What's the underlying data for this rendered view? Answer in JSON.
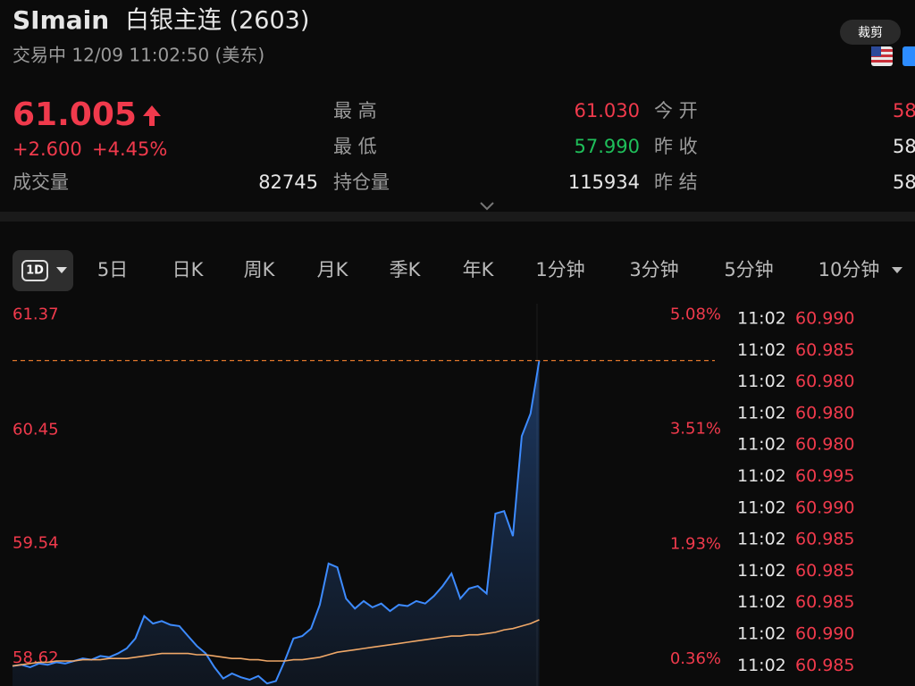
{
  "header": {
    "symbol": "SImain",
    "name": "白银主连 (2603)",
    "status": "交易中 12/09 11:02:50 (美东)",
    "badge": "裁剪"
  },
  "quote": {
    "price": 61.005,
    "change": "+2.600",
    "change_pct": "+4.45%",
    "volume_label": "成交量",
    "volume": "82745"
  },
  "stats": {
    "rows": [
      [
        "最 高",
        "61.030",
        "今 开",
        "58"
      ],
      [
        "最 低",
        "57.990",
        "昨 收",
        "58"
      ],
      [
        "持仓量",
        "115934",
        "昨 结",
        "58"
      ]
    ]
  },
  "tabs": {
    "active": "1D",
    "items": [
      "5日",
      "日K",
      "周K",
      "月K",
      "季K",
      "年K",
      "1分钟",
      "3分钟",
      "5分钟",
      "10分钟"
    ]
  },
  "chart": {
    "ylim": [
      58.4,
      61.46
    ],
    "yticks": [
      61.37,
      60.45,
      59.54,
      58.62
    ],
    "y2lim": [
      -0.01,
      5.23
    ],
    "y2ticks": [
      {
        "value": 5.08,
        "label": "5.08%"
      },
      {
        "value": 3.51,
        "label": "3.51%"
      },
      {
        "value": 1.93,
        "label": "1.93%"
      },
      {
        "value": 0.36,
        "label": "0.36%"
      }
    ],
    "xlim": [
      0,
      80
    ],
    "price": {
      "color": "#3d8bff",
      "values": [
        58.56,
        58.57,
        58.55,
        58.58,
        58.57,
        58.59,
        58.58,
        58.6,
        58.62,
        58.61,
        58.64,
        58.63,
        58.66,
        58.7,
        58.78,
        58.96,
        58.9,
        58.92,
        58.89,
        58.88,
        58.8,
        58.72,
        58.66,
        58.55,
        58.46,
        58.5,
        58.47,
        58.45,
        58.48,
        58.42,
        58.44,
        58.6,
        58.78,
        58.8,
        58.86,
        59.05,
        59.38,
        59.35,
        59.1,
        59.02,
        59.08,
        59.03,
        59.06,
        59.0,
        59.05,
        59.04,
        59.08,
        59.06,
        59.12,
        59.2,
        59.3,
        59.1,
        59.18,
        59.2,
        59.14,
        59.78,
        59.8,
        59.6,
        60.4,
        60.58,
        61.005,
        null,
        null,
        null,
        null,
        null,
        null,
        null,
        null,
        null,
        null,
        null,
        null,
        null,
        null,
        null,
        null,
        null,
        null,
        null,
        null
      ]
    },
    "average": {
      "color": "#f0a868",
      "values": [
        58.56,
        58.57,
        58.58,
        58.59,
        58.59,
        58.6,
        58.6,
        58.6,
        58.61,
        58.61,
        58.61,
        58.62,
        58.62,
        58.62,
        58.63,
        58.64,
        58.65,
        58.66,
        58.66,
        58.66,
        58.66,
        58.65,
        58.65,
        58.64,
        58.63,
        58.62,
        58.62,
        58.61,
        58.61,
        58.6,
        58.6,
        58.6,
        58.61,
        58.61,
        58.62,
        58.63,
        58.65,
        58.67,
        58.68,
        58.69,
        58.7,
        58.71,
        58.72,
        58.73,
        58.74,
        58.75,
        58.76,
        58.77,
        58.78,
        58.79,
        58.8,
        58.8,
        58.81,
        58.81,
        58.82,
        58.83,
        58.85,
        58.86,
        58.88,
        58.9,
        58.93,
        null,
        null,
        null,
        null,
        null,
        null,
        null,
        null,
        null,
        null,
        null,
        null,
        null,
        null,
        null,
        null,
        null,
        null,
        null,
        null
      ]
    }
  },
  "trades": [
    {
      "time": "11:02",
      "price": "60.990"
    },
    {
      "time": "11:02",
      "price": "60.985"
    },
    {
      "time": "11:02",
      "price": "60.980"
    },
    {
      "time": "11:02",
      "price": "60.980"
    },
    {
      "time": "11:02",
      "price": "60.980"
    },
    {
      "time": "11:02",
      "price": "60.995"
    },
    {
      "time": "11:02",
      "price": "60.990"
    },
    {
      "time": "11:02",
      "price": "60.985"
    },
    {
      "time": "11:02",
      "price": "60.985"
    },
    {
      "time": "11:02",
      "price": "60.985"
    },
    {
      "time": "11:02",
      "price": "60.990"
    },
    {
      "time": "11:02",
      "price": "60.985"
    }
  ]
}
